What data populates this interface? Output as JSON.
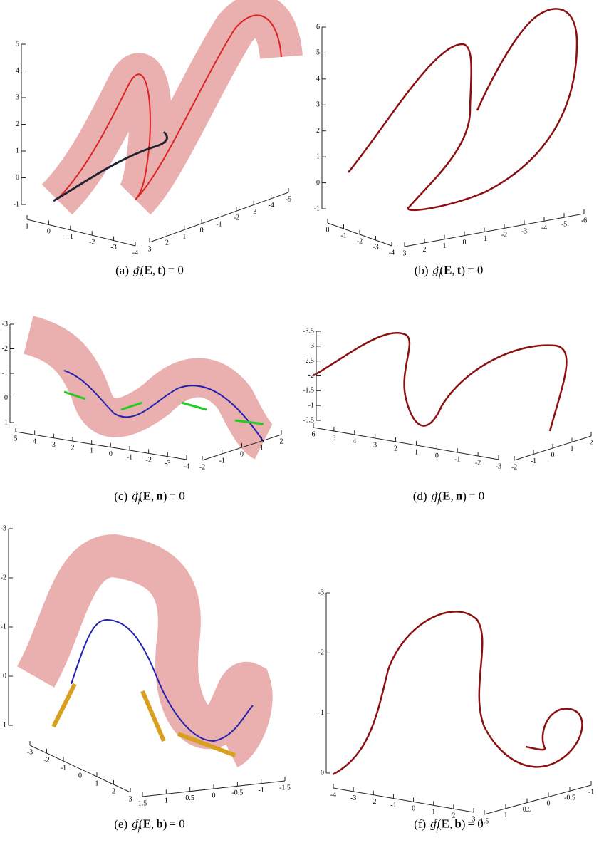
{
  "panels": [
    {
      "caption": {
        "tag": "(a)",
        "func": "g",
        "sub": "f",
        "sup": "ε",
        "open": "(",
        "e": "E",
        "comma": ",",
        "vec": "t",
        "close": ")",
        "rhs": "= 0"
      },
      "axes": {
        "vertical": [
          "5",
          "4",
          "3",
          "2",
          "1",
          "0",
          "-1"
        ],
        "left": [
          "1",
          "0",
          "-1",
          "-2",
          "-3",
          "-4"
        ],
        "right": [
          "3",
          "2",
          "1",
          "0",
          "-1",
          "-2",
          "-3",
          "-4",
          "-5"
        ]
      }
    },
    {
      "caption": {
        "tag": "(b)",
        "func": "g",
        "sub": "f",
        "sup": "ε",
        "open": "(",
        "e": "E",
        "comma": ",",
        "vec": "t",
        "close": ")",
        "rhs": "= 0"
      },
      "axes": {
        "vertical": [
          "6",
          "5",
          "4",
          "3",
          "2",
          "1",
          "0",
          "-1"
        ],
        "left": [
          "0",
          "-1",
          "-2",
          "-3",
          "-4"
        ],
        "right": [
          "3",
          "2",
          "1",
          "0",
          "-1",
          "-2",
          "-3",
          "-4",
          "-5",
          "-6"
        ]
      }
    },
    {
      "caption": {
        "tag": "(c)",
        "func": "g",
        "sub": "f",
        "sup": "ε",
        "open": "(",
        "e": "E",
        "comma": ",",
        "vec": "n",
        "close": ")",
        "rhs": "= 0"
      },
      "axes": {
        "vertical": [
          "-3",
          "-2",
          "-1",
          "0",
          "1"
        ],
        "left": [
          "5",
          "4",
          "3",
          "2",
          "1",
          "0",
          "-1",
          "-2",
          "-3",
          "-4"
        ],
        "right": [
          "-2",
          "-1",
          "0",
          "1",
          "2"
        ]
      }
    },
    {
      "caption": {
        "tag": "(d)",
        "func": "g",
        "sub": "f",
        "sup": "ε",
        "open": "(",
        "e": "E",
        "comma": ",",
        "vec": "n",
        "close": ")",
        "rhs": "= 0"
      },
      "axes": {
        "vertical": [
          "-3.5",
          "-3",
          "-2.5",
          "-2",
          "-1.5",
          "-1",
          "-0.5"
        ],
        "left": [
          "6",
          "5",
          "4",
          "3",
          "2",
          "1",
          "0",
          "-1",
          "-2",
          "-3"
        ],
        "right": [
          "-2",
          "-1",
          "0",
          "1",
          "2"
        ]
      }
    },
    {
      "caption": {
        "tag": "(e)",
        "func": "g",
        "sub": "f",
        "sup": "ε",
        "open": "(",
        "e": "E",
        "comma": ",",
        "vec": "b",
        "close": ")",
        "rhs": "= 0"
      },
      "axes": {
        "vertical": [
          "-3",
          "-2",
          "-1",
          "0",
          "1"
        ],
        "left": [
          "-3",
          "-2",
          "-1",
          "0",
          "1",
          "2",
          "3"
        ],
        "right": [
          "1.5",
          "1",
          "0.5",
          "0",
          "-0.5",
          "-1",
          "-1.5"
        ]
      }
    },
    {
      "caption": {
        "tag": "(f)",
        "func": "g",
        "sub": "f",
        "sup": "ε",
        "open": "(",
        "e": "E",
        "comma": ",",
        "vec": "b",
        "close": ")",
        "rhs": "= 0"
      },
      "axes": {
        "vertical": [
          "-3",
          "-2",
          "-1",
          "0"
        ],
        "left": [
          "-4",
          "-3",
          "-2",
          "-1",
          "0",
          "1",
          "2",
          "3"
        ],
        "right": [
          "1.5",
          "1",
          "0.5",
          "0",
          "-0.5",
          "-1"
        ]
      }
    }
  ]
}
